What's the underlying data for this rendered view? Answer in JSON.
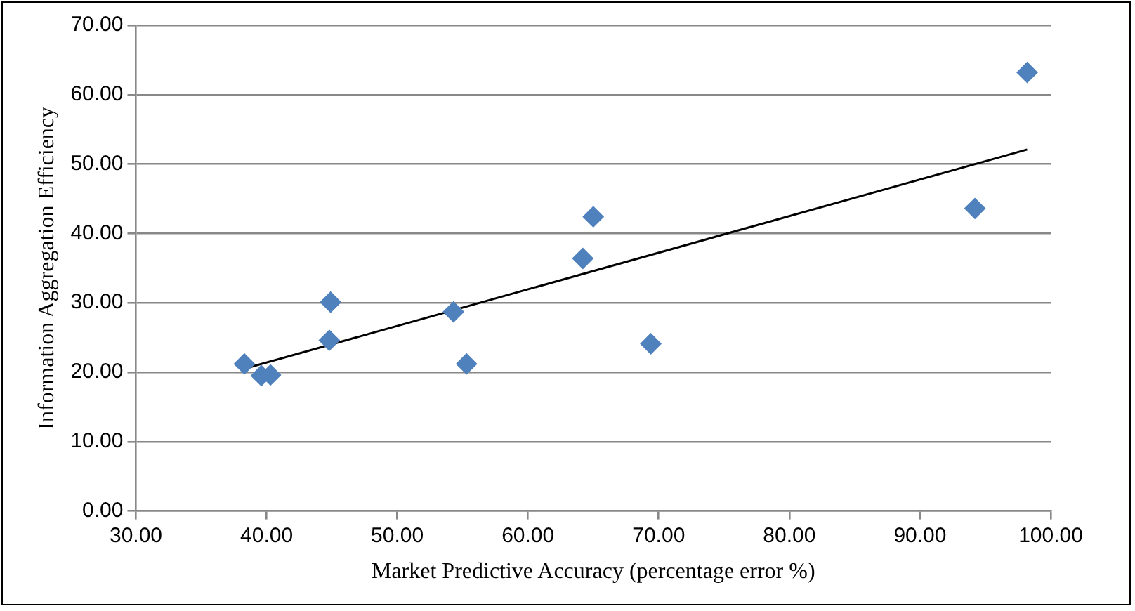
{
  "chart_data": {
    "type": "scatter",
    "xlabel": "Market Predictive Accuracy (percentage error %)",
    "ylabel": "Information Aggregation Efficiency",
    "series": [
      {
        "color": "#4f81bd",
        "x": [
          38.3,
          39.6,
          40.3,
          44.8,
          44.9,
          54.3,
          55.3,
          64.2,
          65.0,
          69.4,
          94.2,
          98.2
        ],
        "values": [
          21.2,
          19.5,
          19.6,
          24.6,
          30.1,
          28.7,
          21.2,
          36.4,
          42.4,
          24.1,
          43.6,
          63.2
        ]
      },
      {
        "type": "line",
        "marker": "none",
        "color": "#000000",
        "x": [
          38.3,
          98.2
        ],
        "values": [
          20.5,
          52.1
        ]
      }
    ],
    "marker": "diamond",
    "grid": "y",
    "legend": false,
    "xlim": [
      30,
      100
    ],
    "ylim": [
      0,
      70
    ],
    "xticks": [
      {
        "value": 30,
        "label": "30.00"
      },
      {
        "value": 40,
        "label": "40.00"
      },
      {
        "value": 50,
        "label": "50.00"
      },
      {
        "value": 60,
        "label": "60.00"
      },
      {
        "value": 70,
        "label": "70.00"
      },
      {
        "value": 80,
        "label": "80.00"
      },
      {
        "value": 90,
        "label": "90.00"
      },
      {
        "value": 100,
        "label": "100.00"
      }
    ],
    "yticks": [
      {
        "value": 0,
        "label": "0.00"
      },
      {
        "value": 10,
        "label": "10.00"
      },
      {
        "value": 20,
        "label": "20.00"
      },
      {
        "value": 30,
        "label": "30.00"
      },
      {
        "value": 40,
        "label": "40.00"
      },
      {
        "value": 50,
        "label": "50.00"
      },
      {
        "value": 60,
        "label": "60.00"
      },
      {
        "value": 70,
        "label": "70.00"
      }
    ]
  }
}
